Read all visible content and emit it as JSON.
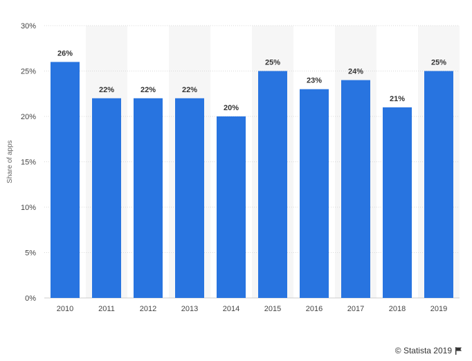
{
  "chart_data": {
    "type": "bar",
    "title": "",
    "xlabel": "",
    "ylabel": "Share of apps",
    "categories": [
      "2010",
      "2011",
      "2012",
      "2013",
      "2014",
      "2015",
      "2016",
      "2017",
      "2018",
      "2019"
    ],
    "values": [
      26,
      22,
      22,
      22,
      20,
      25,
      23,
      24,
      21,
      25
    ],
    "value_labels": [
      "26%",
      "22%",
      "22%",
      "22%",
      "20%",
      "25%",
      "23%",
      "24%",
      "21%",
      "25%"
    ],
    "ylim": [
      0,
      30
    ],
    "yticks": [
      0,
      5,
      10,
      15,
      20,
      25,
      30
    ],
    "ytick_labels": [
      "0%",
      "5%",
      "10%",
      "15%",
      "20%",
      "25%",
      "30%"
    ],
    "grid": true,
    "legend": "none",
    "bar_color": "#2874e0"
  },
  "footer": {
    "credit": "© Statista 2019",
    "flag_icon": "flag-icon"
  }
}
